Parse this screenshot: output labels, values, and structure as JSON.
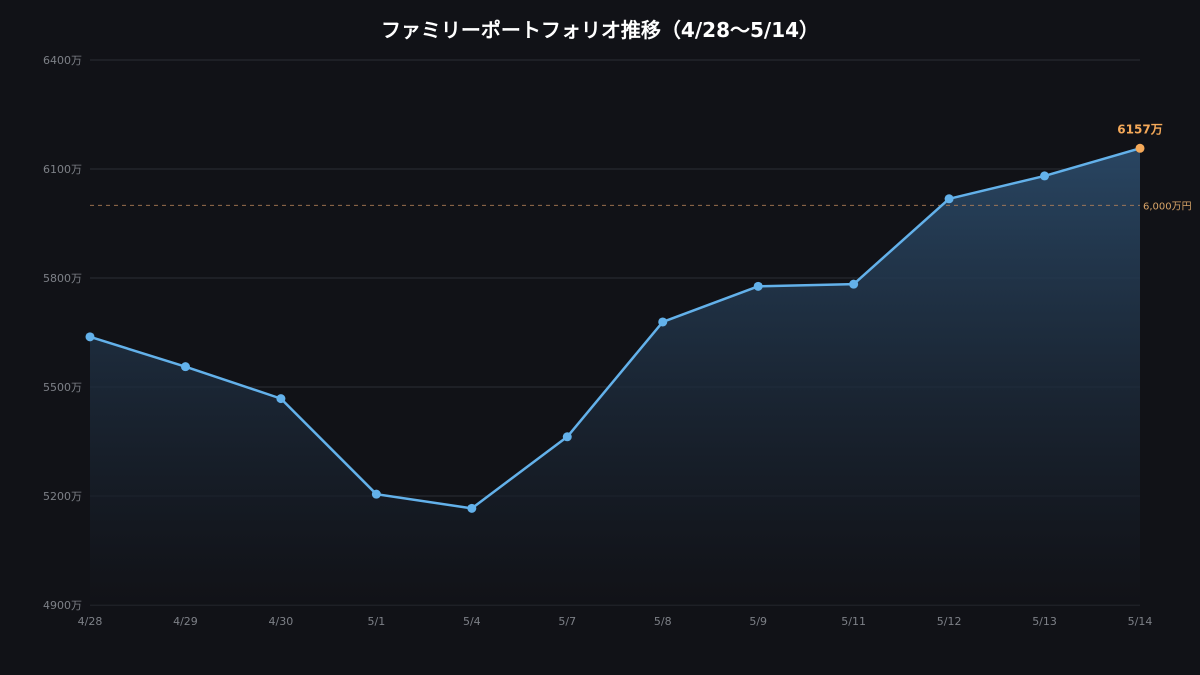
{
  "chart_data": {
    "type": "area",
    "title": "ファミリーポートフォリオ推移（4/28〜5/14）",
    "xlabel": "",
    "ylabel": "",
    "categories": [
      "4/28",
      "4/29",
      "4/30",
      "5/1",
      "5/4",
      "5/7",
      "5/8",
      "5/9",
      "5/11",
      "5/12",
      "5/13",
      "5/14"
    ],
    "series": [
      {
        "values": [
          5638,
          5556,
          5468,
          5205,
          5166,
          5363,
          5679,
          5777,
          5783,
          6018,
          6081,
          6157
        ]
      }
    ],
    "ylim": [
      4900,
      6400
    ],
    "yticks": [
      4900,
      5200,
      5500,
      5800,
      6100,
      6400
    ],
    "ytick_labels": [
      "4900万",
      "5200万",
      "5500万",
      "5800万",
      "6100万",
      "6400万"
    ],
    "reference_line": {
      "value": 6000,
      "label": "6,000万円"
    },
    "last_point_label": "6157万",
    "grid": true,
    "colors": {
      "background": "#111217",
      "line": "#63b1ea",
      "area_top": "#2a4866",
      "grid": "#2a2d35",
      "reference": "#b8845a",
      "highlight": "#f5a959"
    }
  }
}
